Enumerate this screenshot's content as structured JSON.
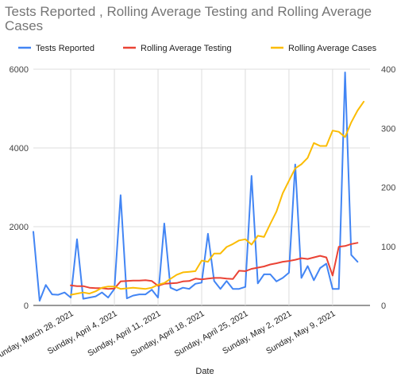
{
  "chart_data": {
    "type": "line",
    "title": [
      "Tests Reported , Rolling Average Testing and Rolling Average",
      "Cases"
    ],
    "xlabel": "Date",
    "ylabel_left": "",
    "ylabel_right": "",
    "ylim_left": [
      0,
      6000
    ],
    "ylim_right": [
      0,
      400
    ],
    "y_ticks_left": [
      "0",
      "2000",
      "4000",
      "6000"
    ],
    "y_ticks_right": [
      "0",
      "100",
      "200",
      "300",
      "400"
    ],
    "x_tick_labels": [
      "Sunday, March 28, 2021",
      "Sunday, April 4, 2021",
      "Sunday, April 11, 2021",
      "Sunday, April 18, 2021",
      "Sunday, April 25, 2021",
      "Sunday, May 2, 2021",
      "Sunday, May 9, 2021"
    ],
    "x_tick_days": [
      6,
      13,
      20,
      27,
      34,
      41,
      48
    ],
    "x_dates": [
      "2021-03-22",
      "2021-03-23",
      "2021-03-24",
      "2021-03-25",
      "2021-03-26",
      "2021-03-27",
      "2021-03-28",
      "2021-03-29",
      "2021-03-30",
      "2021-03-31",
      "2021-04-01",
      "2021-04-02",
      "2021-04-03",
      "2021-04-04",
      "2021-04-05",
      "2021-04-06",
      "2021-04-07",
      "2021-04-08",
      "2021-04-09",
      "2021-04-10",
      "2021-04-11",
      "2021-04-12",
      "2021-04-13",
      "2021-04-14",
      "2021-04-15",
      "2021-04-16",
      "2021-04-17",
      "2021-04-18",
      "2021-04-19",
      "2021-04-20",
      "2021-04-21",
      "2021-04-22",
      "2021-04-23",
      "2021-04-24",
      "2021-04-25",
      "2021-04-26",
      "2021-04-27",
      "2021-04-28",
      "2021-04-29",
      "2021-04-30",
      "2021-05-01",
      "2021-05-02",
      "2021-05-03",
      "2021-05-04",
      "2021-05-05",
      "2021-05-06",
      "2021-05-07",
      "2021-05-08",
      "2021-05-09",
      "2021-05-10",
      "2021-05-11",
      "2021-05-12",
      "2021-05-13",
      "2021-05-14",
      "2021-05-15"
    ],
    "legend_position": "top",
    "grid": true,
    "series": [
      {
        "name": "Tests Reported",
        "color": "#4285f4",
        "axis": "left",
        "values": [
          1870,
          120,
          520,
          280,
          270,
          330,
          200,
          1680,
          170,
          200,
          230,
          330,
          200,
          420,
          2800,
          180,
          250,
          280,
          280,
          400,
          200,
          2080,
          450,
          380,
          450,
          420,
          550,
          580,
          1820,
          620,
          420,
          620,
          420,
          420,
          470,
          3290,
          560,
          790,
          790,
          610,
          700,
          830,
          3580,
          700,
          1000,
          640,
          950,
          1060,
          420,
          420,
          5920,
          1280,
          1110
        ]
      },
      {
        "name": "Rolling Average Testing",
        "color": "#ea4335",
        "axis": "left",
        "start_index": 6,
        "values": [
          510,
          490,
          490,
          450,
          440,
          440,
          420,
          430,
          610,
          620,
          630,
          630,
          640,
          620,
          500,
          550,
          560,
          570,
          610,
          620,
          680,
          660,
          680,
          700,
          700,
          680,
          670,
          880,
          870,
          930,
          960,
          990,
          1040,
          1070,
          1110,
          1130,
          1160,
          1200,
          1180,
          1220,
          1260,
          1220,
          760,
          1490,
          1510,
          1560,
          1590
        ]
      },
      {
        "name": "Rolling Average Cases",
        "color": "#fbbc04",
        "axis": "right",
        "start_index": 6,
        "values": [
          18,
          20,
          22,
          20,
          24,
          30,
          32,
          32,
          28,
          29,
          30,
          29,
          28,
          30,
          35,
          38,
          45,
          52,
          56,
          57,
          58,
          76,
          74,
          88,
          88,
          99,
          104,
          110,
          112,
          103,
          118,
          116,
          138,
          159,
          190,
          211,
          232,
          239,
          250,
          275,
          270,
          270,
          296,
          294,
          285,
          310,
          330,
          345
        ]
      }
    ]
  }
}
